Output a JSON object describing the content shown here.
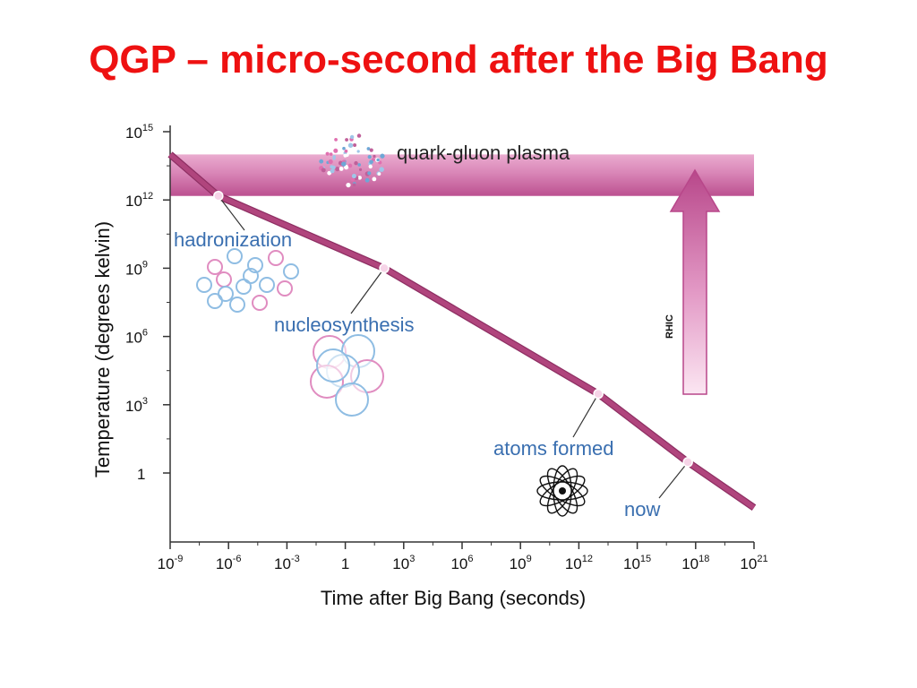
{
  "slide": {
    "title": "QGP – micro-second after the Big Bang"
  },
  "chart_data": {
    "type": "line",
    "title": "",
    "xlabel": "Time after Big Bang (seconds)",
    "ylabel": "Temperature (degrees kelvin)",
    "x_scale": "log",
    "y_scale": "log",
    "xlim": [
      1e-09,
      1e+21
    ],
    "ylim": [
      0.01,
      1000000000000000.0
    ],
    "x_ticks": [
      {
        "base": "10",
        "exp": "-9",
        "value": 1e-09
      },
      {
        "base": "10",
        "exp": "-6",
        "value": 1e-06
      },
      {
        "base": "10",
        "exp": "-3",
        "value": 0.001
      },
      {
        "base": "1",
        "exp": "",
        "value": 1
      },
      {
        "base": "10",
        "exp": "3",
        "value": 1000.0
      },
      {
        "base": "10",
        "exp": "6",
        "value": 1000000.0
      },
      {
        "base": "10",
        "exp": "9",
        "value": 1000000000.0
      },
      {
        "base": "10",
        "exp": "12",
        "value": 1000000000000.0
      },
      {
        "base": "10",
        "exp": "15",
        "value": 1000000000000000.0
      },
      {
        "base": "10",
        "exp": "18",
        "value": 1e+18
      },
      {
        "base": "10",
        "exp": "21",
        "value": 1e+21
      }
    ],
    "y_ticks": [
      {
        "base": "1",
        "exp": "",
        "value": 1
      },
      {
        "base": "10",
        "exp": "3",
        "value": 1000.0
      },
      {
        "base": "10",
        "exp": "6",
        "value": 1000000.0
      },
      {
        "base": "10",
        "exp": "9",
        "value": 1000000000.0
      },
      {
        "base": "10",
        "exp": "12",
        "value": 1000000000000.0
      },
      {
        "base": "10",
        "exp": "15",
        "value": 1000000000000000.0
      }
    ],
    "series": [
      {
        "x": [
          1e-09,
          3e-07,
          100.0,
          10000000000000.0,
          4e+17,
          1e+21
        ],
        "y": [
          100000000000000.0,
          1500000000000.0,
          1000000000.0,
          3000,
          3,
          0.03
        ]
      }
    ],
    "bands": [
      {
        "label": "quark-gluon plasma",
        "y_from": 1500000000000.0,
        "y_to": 100000000000000.0,
        "color": "#c04d8e"
      }
    ],
    "events": [
      {
        "label": "hadronization",
        "x": 3e-07,
        "y": 1500000000000.0
      },
      {
        "label": "nucleosynthesis",
        "x": 100.0,
        "y": 1000000000.0
      },
      {
        "label": "atoms formed",
        "x": 10000000000000.0,
        "y": 3000
      },
      {
        "label": "now",
        "x": 4e+17,
        "y": 3
      }
    ],
    "arrow_label": "RHIC",
    "grid": false,
    "colors": {
      "line": "#b0457d",
      "band": "#c04d8e",
      "annotation_text": "#3a6fb0",
      "title": "#ee1111"
    }
  }
}
